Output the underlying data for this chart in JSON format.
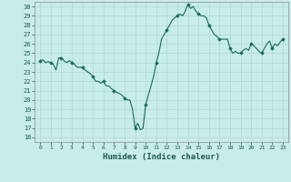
{
  "title": "",
  "xlabel": "Humidex (Indice chaleur)",
  "bg_color": "#c8ece8",
  "grid_color": "#b0d8d0",
  "line_color": "#1a6b5a",
  "marker_color": "#1a6b5a",
  "ylim": [
    15.5,
    30.5
  ],
  "xlim": [
    -0.5,
    23.5
  ],
  "yticks": [
    16,
    17,
    18,
    19,
    20,
    21,
    22,
    23,
    24,
    25,
    26,
    27,
    28,
    29,
    30
  ],
  "xticks": [
    0,
    1,
    2,
    3,
    4,
    5,
    6,
    7,
    8,
    9,
    10,
    11,
    12,
    13,
    14,
    15,
    16,
    17,
    18,
    19,
    20,
    21,
    22,
    23
  ],
  "x": [
    0,
    0.25,
    0.5,
    0.75,
    1,
    1.25,
    1.5,
    1.75,
    2,
    2.25,
    2.5,
    2.75,
    3,
    3.25,
    3.5,
    3.75,
    4,
    4.25,
    4.5,
    4.75,
    5,
    5.25,
    5.5,
    5.75,
    6,
    6.25,
    6.5,
    6.75,
    7,
    7.25,
    7.5,
    7.75,
    8,
    8.25,
    8.5,
    8.75,
    9,
    9.25,
    9.5,
    9.75,
    10,
    10.25,
    10.5,
    10.75,
    11,
    11.25,
    11.5,
    11.75,
    12,
    12.25,
    12.5,
    12.75,
    13,
    13.25,
    13.5,
    13.75,
    14,
    14.25,
    14.5,
    14.75,
    15,
    15.25,
    15.5,
    15.75,
    16,
    16.25,
    16.5,
    16.75,
    17,
    17.25,
    17.5,
    17.75,
    18,
    18.25,
    18.5,
    18.75,
    19,
    19.25,
    19.5,
    19.75,
    20,
    20.25,
    20.5,
    20.75,
    21,
    21.25,
    21.5,
    21.75,
    22,
    22.25,
    22.5,
    22.75,
    23
  ],
  "y": [
    24.2,
    24.3,
    24.0,
    24.1,
    24.0,
    23.8,
    23.2,
    24.5,
    24.5,
    24.2,
    24.0,
    24.2,
    24.0,
    23.8,
    23.5,
    23.5,
    23.5,
    23.2,
    23.0,
    22.8,
    22.5,
    22.0,
    22.0,
    21.8,
    22.0,
    21.5,
    21.5,
    21.2,
    21.0,
    20.8,
    20.7,
    20.5,
    20.2,
    20.0,
    20.0,
    19.0,
    17.0,
    17.5,
    16.8,
    17.0,
    19.5,
    20.5,
    21.5,
    22.5,
    24.0,
    25.0,
    26.5,
    27.0,
    27.5,
    28.0,
    28.5,
    28.8,
    29.0,
    29.2,
    29.0,
    29.5,
    30.2,
    29.8,
    30.0,
    29.5,
    29.2,
    29.0,
    29.0,
    28.8,
    28.0,
    27.5,
    27.0,
    26.8,
    26.5,
    26.5,
    26.5,
    26.5,
    25.5,
    25.0,
    25.2,
    25.0,
    25.0,
    25.3,
    25.5,
    25.3,
    26.0,
    25.8,
    25.5,
    25.2,
    25.0,
    25.5,
    26.0,
    26.3,
    25.5,
    26.0,
    25.8,
    26.2,
    26.5
  ],
  "marker_x": [
    0,
    1,
    2,
    3,
    4,
    5,
    6,
    7,
    8,
    9,
    10,
    11,
    12,
    13,
    14,
    15,
    16,
    17,
    18,
    19,
    20,
    21,
    22,
    23
  ],
  "marker_y": [
    24.2,
    24.0,
    24.5,
    24.0,
    23.5,
    22.5,
    22.0,
    21.0,
    20.2,
    17.0,
    19.5,
    24.0,
    27.5,
    29.0,
    30.2,
    29.2,
    28.0,
    26.5,
    25.5,
    25.0,
    26.0,
    25.0,
    25.5,
    26.5
  ]
}
